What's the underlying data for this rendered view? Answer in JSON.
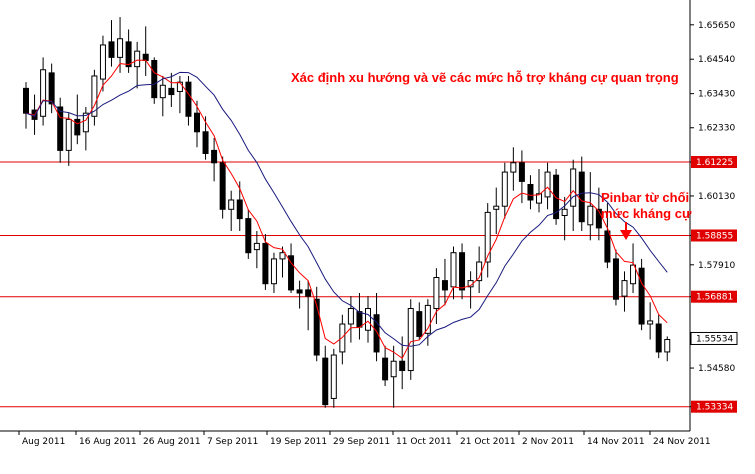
{
  "chart_data": {
    "type": "candlestick",
    "ylim": [
      1.5255,
      1.6645
    ],
    "y_ticks": [
      "1.65650",
      "1.64540",
      "1.63430",
      "1.62330",
      "1.61225",
      "1.60130",
      "1.58855",
      "1.57910",
      "1.56881",
      "1.55534",
      "1.54580",
      "1.53334"
    ],
    "x_ticks": [
      "Aug 2011",
      "16 Aug 2011",
      "26 Aug 2011",
      "7 Sep 2011",
      "19 Sep 2011",
      "29 Sep 2011",
      "11 Oct 2011",
      "21 Oct 2011",
      "2 Nov 2011",
      "14 Nov 2011",
      "24 Nov 2011"
    ],
    "levels": [
      {
        "value": 1.61225,
        "label": "1.61225"
      },
      {
        "value": 1.58855,
        "label": "1.58855"
      },
      {
        "value": 1.56881,
        "label": "1.56881"
      },
      {
        "value": 1.53334,
        "label": "1.53334"
      }
    ],
    "last_price": {
      "value": 1.55534,
      "label": "1.55534"
    },
    "annotations": {
      "title": "Xác định xu hướng và vẽ các mức hỗ trợ kháng cự quan trọng",
      "pinbar_line1": "Pinbar từ chối",
      "pinbar_line2": "mức kháng cự"
    },
    "candles": [
      [
        1.636,
        1.638,
        1.623,
        1.628
      ],
      [
        1.629,
        1.634,
        1.621,
        1.626
      ],
      [
        1.627,
        1.646,
        1.624,
        1.642
      ],
      [
        1.641,
        1.644,
        1.628,
        1.631
      ],
      [
        1.63,
        1.633,
        1.612,
        1.616
      ],
      [
        1.616,
        1.628,
        1.611,
        1.626
      ],
      [
        1.626,
        1.634,
        1.618,
        1.621
      ],
      [
        1.622,
        1.63,
        1.616,
        1.628
      ],
      [
        1.627,
        1.642,
        1.624,
        1.64
      ],
      [
        1.639,
        1.653,
        1.635,
        1.65
      ],
      [
        1.651,
        1.658,
        1.643,
        1.646
      ],
      [
        1.646,
        1.659,
        1.641,
        1.652
      ],
      [
        1.651,
        1.655,
        1.641,
        1.643
      ],
      [
        1.643,
        1.651,
        1.636,
        1.648
      ],
      [
        1.647,
        1.656,
        1.64,
        1.645
      ],
      [
        1.645,
        1.646,
        1.631,
        1.633
      ],
      [
        1.633,
        1.64,
        1.627,
        1.637
      ],
      [
        1.636,
        1.641,
        1.63,
        1.634
      ],
      [
        1.635,
        1.64,
        1.628,
        1.638
      ],
      [
        1.638,
        1.64,
        1.624,
        1.627
      ],
      [
        1.628,
        1.632,
        1.617,
        1.622
      ],
      [
        1.622,
        1.627,
        1.613,
        1.615
      ],
      [
        1.616,
        1.62,
        1.606,
        1.612
      ],
      [
        1.612,
        1.614,
        1.594,
        1.597
      ],
      [
        1.597,
        1.603,
        1.59,
        1.6
      ],
      [
        1.6,
        1.606,
        1.59,
        1.594
      ],
      [
        1.594,
        1.597,
        1.581,
        1.583
      ],
      [
        1.584,
        1.59,
        1.578,
        1.586
      ],
      [
        1.586,
        1.589,
        1.571,
        1.573
      ],
      [
        1.573,
        1.583,
        1.57,
        1.581
      ],
      [
        1.581,
        1.585,
        1.575,
        1.583
      ],
      [
        1.582,
        1.586,
        1.57,
        1.571
      ],
      [
        1.571,
        1.574,
        1.565,
        1.57
      ],
      [
        1.571,
        1.574,
        1.558,
        1.569
      ],
      [
        1.568,
        1.572,
        1.548,
        1.55
      ],
      [
        1.549,
        1.553,
        1.533,
        1.534
      ],
      [
        1.536,
        1.552,
        1.533,
        1.55
      ],
      [
        1.551,
        1.563,
        1.547,
        1.56
      ],
      [
        1.56,
        1.569,
        1.554,
        1.565
      ],
      [
        1.564,
        1.57,
        1.555,
        1.559
      ],
      [
        1.558,
        1.569,
        1.554,
        1.565
      ],
      [
        1.563,
        1.57,
        1.548,
        1.551
      ],
      [
        1.549,
        1.553,
        1.54,
        1.542
      ],
      [
        1.543,
        1.553,
        1.533,
        1.548
      ],
      [
        1.548,
        1.556,
        1.539,
        1.545
      ],
      [
        1.545,
        1.568,
        1.542,
        1.565
      ],
      [
        1.564,
        1.567,
        1.555,
        1.556
      ],
      [
        1.557,
        1.568,
        1.553,
        1.566
      ],
      [
        1.565,
        1.578,
        1.56,
        1.575
      ],
      [
        1.574,
        1.581,
        1.566,
        1.571
      ],
      [
        1.572,
        1.585,
        1.568,
        1.583
      ],
      [
        1.583,
        1.586,
        1.568,
        1.571
      ],
      [
        1.572,
        1.577,
        1.565,
        1.574
      ],
      [
        1.574,
        1.585,
        1.57,
        1.58
      ],
      [
        1.58,
        1.599,
        1.575,
        1.596
      ],
      [
        1.597,
        1.604,
        1.589,
        1.598
      ],
      [
        1.598,
        1.612,
        1.594,
        1.609
      ],
      [
        1.609,
        1.617,
        1.603,
        1.612
      ],
      [
        1.612,
        1.616,
        1.599,
        1.606
      ],
      [
        1.605,
        1.608,
        1.597,
        1.6
      ],
      [
        1.599,
        1.61,
        1.596,
        1.602
      ],
      [
        1.601,
        1.612,
        1.597,
        1.609
      ],
      [
        1.608,
        1.61,
        1.592,
        1.594
      ],
      [
        1.595,
        1.601,
        1.587,
        1.597
      ],
      [
        1.598,
        1.613,
        1.59,
        1.61
      ],
      [
        1.609,
        1.614,
        1.59,
        1.593
      ],
      [
        1.592,
        1.609,
        1.587,
        1.598
      ],
      [
        1.597,
        1.604,
        1.587,
        1.591
      ],
      [
        1.59,
        1.599,
        1.578,
        1.58
      ],
      [
        1.581,
        1.584,
        1.566,
        1.568
      ],
      [
        1.569,
        1.577,
        1.564,
        1.574
      ],
      [
        1.573,
        1.586,
        1.57,
        1.579
      ],
      [
        1.578,
        1.581,
        1.558,
        1.56
      ],
      [
        1.56,
        1.567,
        1.555,
        1.561
      ],
      [
        1.56,
        1.563,
        1.549,
        1.551
      ],
      [
        1.551,
        1.556,
        1.548,
        1.555
      ]
    ]
  }
}
